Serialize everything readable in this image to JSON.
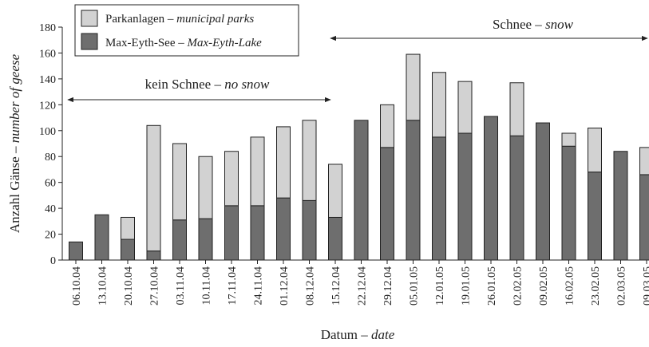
{
  "chart_data": {
    "type": "bar",
    "stacked": true,
    "categories": [
      "06.10.04",
      "13.10.04",
      "20.10.04",
      "27.10.04",
      "03.11.04",
      "10.11.04",
      "17.11.04",
      "24.11.04",
      "01.12.04",
      "08.12.04",
      "15.12.04",
      "22.12.04",
      "29.12.04",
      "05.01.05",
      "12.01.05",
      "19.01.05",
      "26.01.05",
      "02.02.05",
      "09.02.05",
      "16.02.05",
      "23.02.05",
      "02.03.05",
      "09.03.05"
    ],
    "series": [
      {
        "name": "Max-Eyth-See – Max-Eyth-Lake",
        "color": "#6e6e6e",
        "values": [
          14,
          35,
          16,
          7,
          31,
          32,
          42,
          42,
          48,
          46,
          33,
          108,
          87,
          108,
          95,
          98,
          111,
          96,
          106,
          88,
          68,
          84,
          66
        ]
      },
      {
        "name": "Parkanlagen – municipal parks",
        "color": "#d2d2d2",
        "values": [
          0,
          0,
          17,
          97,
          59,
          48,
          42,
          53,
          55,
          62,
          41,
          0,
          33,
          51,
          50,
          40,
          0,
          41,
          0,
          10,
          34,
          0,
          21
        ]
      }
    ],
    "legend": {
      "position": "top-left",
      "entries": [
        {
          "plain": "Parkanlagen – ",
          "italic": "municipal parks",
          "color": "#d2d2d2"
        },
        {
          "plain": "Max-Eyth-See – ",
          "italic": "Max-Eyth-Lake",
          "color": "#6e6e6e"
        }
      ]
    },
    "xlabel": {
      "plain": "Datum – ",
      "italic": "date"
    },
    "ylabel": {
      "plain": "Anzahl Gänse – ",
      "italic": "number of geese"
    },
    "yticks": [
      0,
      20,
      40,
      60,
      80,
      100,
      120,
      140,
      160,
      180
    ],
    "ylim": [
      0,
      180
    ],
    "grid": false,
    "annotations": [
      {
        "plain": "kein Schnee – ",
        "italic": "no snow",
        "from": "06.10.04",
        "to": "15.12.04"
      },
      {
        "plain": "Schnee – ",
        "italic": "snow",
        "from": "15.12.04",
        "to": "09.03.05"
      }
    ]
  }
}
